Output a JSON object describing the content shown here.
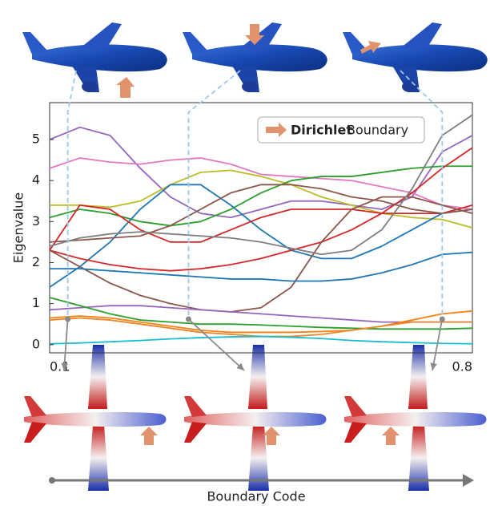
{
  "chart_data": {
    "type": "line",
    "y_label": "Eigenvalue",
    "x_label": "Boundary Code",
    "legend": {
      "bold": "Dirichlet",
      "text": "Boundary",
      "color": "#e0936d"
    },
    "xlim": [
      0.1,
      0.8
    ],
    "xticks": [
      0.1,
      0.8
    ],
    "ylim": [
      -0.2,
      5.9
    ],
    "yticks": [
      0,
      1,
      2,
      3,
      4,
      5
    ],
    "highlight_x": [
      0.13,
      0.33,
      0.75
    ],
    "x": [
      0.1,
      0.15,
      0.2,
      0.25,
      0.3,
      0.35,
      0.4,
      0.45,
      0.5,
      0.55,
      0.6,
      0.65,
      0.7,
      0.75,
      0.8
    ],
    "series": [
      {
        "color": "#9467bd",
        "values": [
          5.0,
          5.3,
          5.1,
          4.3,
          3.6,
          3.2,
          3.1,
          3.3,
          3.5,
          3.5,
          3.4,
          3.3,
          3.6,
          4.7,
          5.1
        ]
      },
      {
        "color": "#e377c2",
        "values": [
          4.3,
          4.55,
          4.45,
          4.4,
          4.5,
          4.55,
          4.4,
          4.15,
          4.1,
          4.05,
          4.0,
          3.85,
          3.7,
          3.4,
          3.3
        ]
      },
      {
        "color": "#bcbd22",
        "values": [
          3.4,
          3.4,
          3.35,
          3.5,
          3.9,
          4.2,
          4.25,
          4.1,
          3.9,
          3.6,
          3.4,
          3.2,
          3.1,
          3.05,
          2.85
        ]
      },
      {
        "color": "#2ca02c",
        "values": [
          3.1,
          3.3,
          3.2,
          3.0,
          2.9,
          3.0,
          3.3,
          3.7,
          4.0,
          4.1,
          4.1,
          4.2,
          4.3,
          4.35,
          4.35
        ]
      },
      {
        "color": "#1f77b4",
        "values": [
          1.4,
          1.9,
          2.5,
          3.3,
          3.9,
          3.9,
          3.4,
          2.8,
          2.3,
          2.1,
          2.1,
          2.4,
          2.8,
          3.2,
          3.3
        ]
      },
      {
        "color": "#d62728",
        "values": [
          2.3,
          3.4,
          3.3,
          2.8,
          2.5,
          2.5,
          2.8,
          3.1,
          3.3,
          3.3,
          3.3,
          3.2,
          3.2,
          3.2,
          3.4
        ]
      },
      {
        "color": "#d62728",
        "values": [
          2.3,
          2.1,
          1.95,
          1.85,
          1.8,
          1.85,
          1.95,
          2.1,
          2.3,
          2.5,
          2.8,
          3.2,
          3.7,
          4.3,
          4.8
        ]
      },
      {
        "color": "#8c564b",
        "values": [
          2.3,
          1.9,
          1.5,
          1.2,
          1.0,
          0.85,
          0.8,
          0.9,
          1.4,
          2.5,
          3.3,
          3.6,
          3.6,
          3.4,
          3.2
        ]
      },
      {
        "color": "#8c564b",
        "values": [
          2.5,
          2.55,
          2.6,
          2.65,
          2.9,
          3.3,
          3.7,
          3.9,
          3.9,
          3.8,
          3.6,
          3.5,
          3.3,
          3.2,
          3.3
        ]
      },
      {
        "color": "#7f7f7f",
        "values": [
          2.4,
          2.6,
          2.7,
          2.75,
          2.7,
          2.65,
          2.6,
          2.5,
          2.35,
          2.2,
          2.3,
          2.8,
          3.8,
          5.1,
          5.6
        ]
      },
      {
        "color": "#1f77b4",
        "values": [
          1.85,
          1.85,
          1.8,
          1.75,
          1.7,
          1.65,
          1.6,
          1.6,
          1.55,
          1.55,
          1.6,
          1.75,
          1.95,
          2.2,
          2.25
        ]
      },
      {
        "color": "#9467bd",
        "values": [
          0.85,
          0.9,
          0.95,
          0.95,
          0.9,
          0.85,
          0.8,
          0.75,
          0.7,
          0.65,
          0.6,
          0.55,
          0.55,
          0.55,
          0.55
        ]
      },
      {
        "color": "#2ca02c",
        "values": [
          1.15,
          0.95,
          0.75,
          0.6,
          0.55,
          0.5,
          0.5,
          0.48,
          0.45,
          0.42,
          0.4,
          0.38,
          0.38,
          0.38,
          0.4
        ]
      },
      {
        "color": "#ff7f0e",
        "values": [
          0.65,
          0.7,
          0.65,
          0.55,
          0.45,
          0.35,
          0.3,
          0.3,
          0.3,
          0.32,
          0.35,
          0.45,
          0.6,
          0.75,
          0.82
        ]
      },
      {
        "color": "#e8862a",
        "values": [
          0.6,
          0.65,
          0.6,
          0.5,
          0.4,
          0.3,
          0.25,
          0.2,
          0.2,
          0.25,
          0.35,
          0.45,
          0.55,
          0.55,
          0.55
        ]
      },
      {
        "color": "#17becf",
        "values": [
          0.02,
          0.04,
          0.07,
          0.1,
          0.14,
          0.17,
          0.19,
          0.2,
          0.18,
          0.15,
          0.1,
          0.07,
          0.05,
          0.03,
          0.02
        ]
      }
    ]
  }
}
